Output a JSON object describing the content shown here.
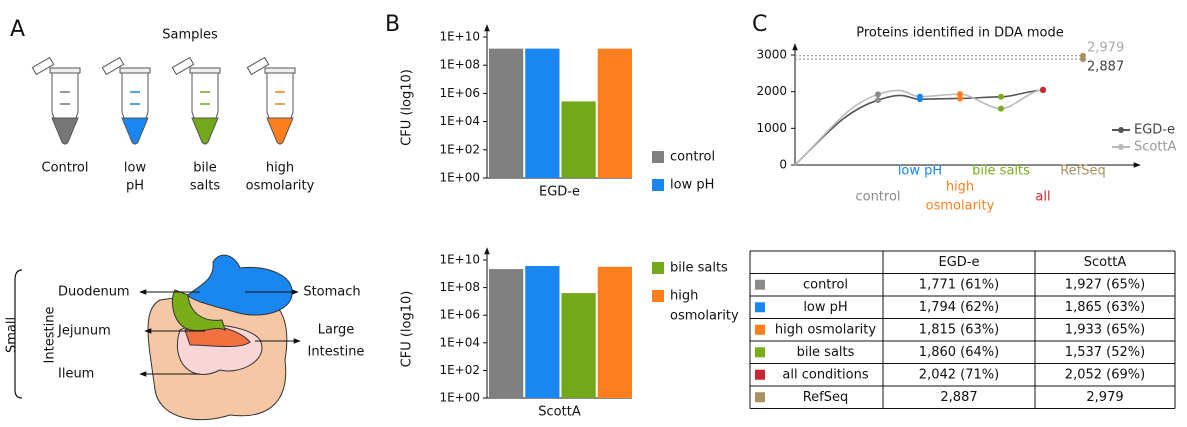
{
  "panel_labels": [
    "A",
    "B",
    "C"
  ],
  "samples": {
    "title": "Samples",
    "labels": [
      [
        "Control"
      ],
      [
        "low",
        "pH"
      ],
      [
        "bile",
        "salts"
      ],
      [
        "high",
        "osmolarity"
      ]
    ]
  },
  "anatomy": {
    "group": [
      "Small",
      "Intestine"
    ],
    "left": [
      "Duodenum",
      "Jejunum",
      "Ileum"
    ],
    "right": [
      [
        "Stomach"
      ],
      [
        "Large",
        "Intestine"
      ]
    ]
  },
  "chart_data": [
    {
      "type": "bar",
      "x_label": "EGD-e",
      "y_label": "CFU (log10)",
      "log_scale": true,
      "values": [
        1500000000,
        1500000000,
        270000,
        1500000000
      ],
      "colors": [
        "#808080",
        "#1a86f0",
        "#72a81a",
        "#ff7f1e"
      ],
      "ylim": [
        1,
        10000000000
      ],
      "yticks": [
        {
          "value": 1,
          "label": "1E+00"
        },
        {
          "value": 100,
          "label": "1E+02"
        },
        {
          "value": 10000,
          "label": "1E+04"
        },
        {
          "value": 1000000,
          "label": "1E+06"
        },
        {
          "value": 100000000,
          "label": "1E+08"
        },
        {
          "value": 10000000000,
          "label": "1E+10"
        }
      ],
      "legend": [
        {
          "lines": [
            "control"
          ],
          "color": "#808080"
        },
        {
          "lines": [
            "low pH"
          ],
          "color": "#1a86f0"
        }
      ]
    },
    {
      "type": "bar",
      "x_label": "ScottA",
      "y_label": "CFU (log10)",
      "log_scale": true,
      "values": [
        2200000000,
        3700000000,
        40000000,
        3200000000
      ],
      "colors": [
        "#808080",
        "#1a86f0",
        "#72a81a",
        "#ff7f1e"
      ],
      "ylim": [
        1,
        10000000000
      ],
      "yticks": [
        {
          "value": 1,
          "label": "1E+00"
        },
        {
          "value": 100,
          "label": "1E+02"
        },
        {
          "value": 10000,
          "label": "1E+04"
        },
        {
          "value": 1000000,
          "label": "1E+06"
        },
        {
          "value": 100000000,
          "label": "1E+08"
        },
        {
          "value": 10000000000,
          "label": "1E+10"
        }
      ],
      "legend": [
        {
          "lines": [
            "bile salts"
          ],
          "color": "#72a81a"
        },
        {
          "lines": [
            "high",
            "osmolarity"
          ],
          "color": "#ff7f1e"
        }
      ]
    },
    {
      "type": "line",
      "title": "Proteins identified in DDA mode",
      "categories": [
        [
          "control"
        ],
        [
          "low pH"
        ],
        [
          "high",
          "osmolarity"
        ],
        [
          "bile salts"
        ],
        [
          "all"
        ],
        [
          "RefSeq"
        ]
      ],
      "category_colors": [
        "#8c8c8c",
        "#1a86f0",
        "#ff7f1e",
        "#7aad1a",
        "#c8282d",
        "#a89060"
      ],
      "series": [
        {
          "name": "EGD-e",
          "color": "#555555",
          "values": [
            1771,
            1794,
            1815,
            1860,
            2042,
            2887
          ],
          "value_labels": [
            null,
            null,
            null,
            null,
            null,
            "2,887"
          ]
        },
        {
          "name": "ScottA",
          "color": "#bbbbbb",
          "values": [
            1927,
            1865,
            1933,
            1537,
            2052,
            2979
          ],
          "value_labels": [
            null,
            null,
            null,
            null,
            null,
            "2,979"
          ]
        }
      ],
      "ylim": [
        0,
        3300
      ],
      "yticks": [
        0,
        1000,
        2000,
        3000
      ]
    }
  ],
  "table": {
    "columns": [
      "EGD-e",
      "ScottA"
    ],
    "rows": [
      {
        "label": "control",
        "color": "#8c8c8c",
        "cells": [
          "1,771 (61%)",
          "1,927 (65%)"
        ]
      },
      {
        "label": "low pH",
        "color": "#1a86f0",
        "cells": [
          "1,794 (62%)",
          "1,865 (63%)"
        ]
      },
      {
        "label": "high osmolarity",
        "color": "#ff7f1e",
        "cells": [
          "1,815 (63%)",
          "1,933 (65%)"
        ]
      },
      {
        "label": "bile salts",
        "color": "#7aad1a",
        "cells": [
          "1,860 (64%)",
          "1,537 (52%)"
        ]
      },
      {
        "label": "all conditions",
        "color": "#c8282d",
        "cells": [
          "2,042 (71%)",
          "2,052 (69%)"
        ]
      },
      {
        "label": "RefSeq",
        "color": "#a89060",
        "cells": [
          "2,887",
          "2,979"
        ]
      }
    ]
  }
}
